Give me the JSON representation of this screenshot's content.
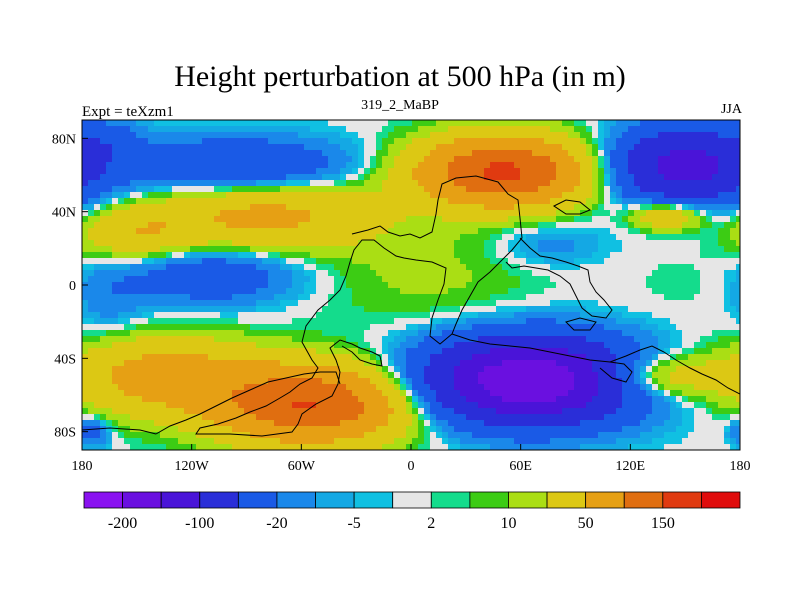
{
  "chart_data": {
    "type": "heatmap",
    "title": "Height perturbation at 500 hPa (in m)",
    "left_label": "Expt = teXzm1",
    "center_label": "319_2_MaBP",
    "right_label": "JJA",
    "x_ticks": [
      {
        "value": -180,
        "label": "180"
      },
      {
        "value": -120,
        "label": "120W"
      },
      {
        "value": -60,
        "label": "60W"
      },
      {
        "value": 0,
        "label": "0"
      },
      {
        "value": 60,
        "label": "60E"
      },
      {
        "value": 120,
        "label": "120E"
      },
      {
        "value": 180,
        "label": "180"
      }
    ],
    "y_ticks": [
      {
        "value": 80,
        "label": "80N"
      },
      {
        "value": 40,
        "label": "40N"
      },
      {
        "value": 0,
        "label": "0"
      },
      {
        "value": -40,
        "label": "40S"
      },
      {
        "value": -80,
        "label": "80S"
      }
    ],
    "xlim": [
      -180,
      180
    ],
    "ylim": [
      -90,
      90
    ],
    "colorbar": {
      "levels": [
        -300,
        -200,
        -150,
        -100,
        -50,
        -20,
        -10,
        -5,
        -2,
        2,
        5,
        10,
        20,
        50,
        100,
        150,
        200
      ],
      "labels": [
        "-200",
        "-100",
        "-20",
        "-5",
        "2",
        "10",
        "50",
        "150"
      ],
      "label_levels": [
        -200,
        -100,
        -20,
        -5,
        2,
        10,
        50,
        150
      ],
      "colors": [
        "#8a12f0",
        "#6a10e0",
        "#4a14d8",
        "#2a2ed8",
        "#1a5ae6",
        "#1a88ea",
        "#14a8e4",
        "#10c0e2",
        "#e6e6e6",
        "#14dc8c",
        "#3ccc14",
        "#aade14",
        "#dcc814",
        "#e6a014",
        "#e06e10",
        "#e03a10",
        "#e00c0c"
      ]
    },
    "anomaly_centers": [
      {
        "lon": 50,
        "lat": 62,
        "value": 160,
        "rx": 45,
        "ry": 18
      },
      {
        "lon": -80,
        "lat": 38,
        "value": 60,
        "rx": 60,
        "ry": 18
      },
      {
        "lon": -150,
        "lat": 28,
        "value": 40,
        "rx": 30,
        "ry": 14
      },
      {
        "lon": 10,
        "lat": 5,
        "value": 12,
        "rx": 60,
        "ry": 30
      },
      {
        "lon": -55,
        "lat": -65,
        "value": 150,
        "rx": 50,
        "ry": 20
      },
      {
        "lon": -135,
        "lat": -50,
        "value": 70,
        "rx": 50,
        "ry": 20
      },
      {
        "lon": 130,
        "lat": -50,
        "value": 50,
        "rx": 35,
        "ry": 12
      },
      {
        "lon": 140,
        "lat": 38,
        "value": 50,
        "rx": 20,
        "ry": 8
      },
      {
        "lon": -165,
        "lat": 80,
        "value": -20,
        "rx": 15,
        "ry": 10
      },
      {
        "lon": -95,
        "lat": 65,
        "value": -50,
        "rx": 60,
        "ry": 15
      },
      {
        "lon": 150,
        "lat": 65,
        "value": -120,
        "rx": 40,
        "ry": 20
      },
      {
        "lon": -110,
        "lat": 5,
        "value": -40,
        "rx": 45,
        "ry": 15
      },
      {
        "lon": 65,
        "lat": -52,
        "value": -200,
        "rx": 55,
        "ry": 22
      },
      {
        "lon": -165,
        "lat": -8,
        "value": -15,
        "rx": 20,
        "ry": 20
      },
      {
        "lon": 75,
        "lat": 22,
        "value": -15,
        "rx": 30,
        "ry": 12
      },
      {
        "lon": 150,
        "lat": 0,
        "value": 3,
        "rx": 35,
        "ry": 20
      },
      {
        "lon": -175,
        "lat": -80,
        "value": -30,
        "rx": 10,
        "ry": 8
      }
    ]
  }
}
